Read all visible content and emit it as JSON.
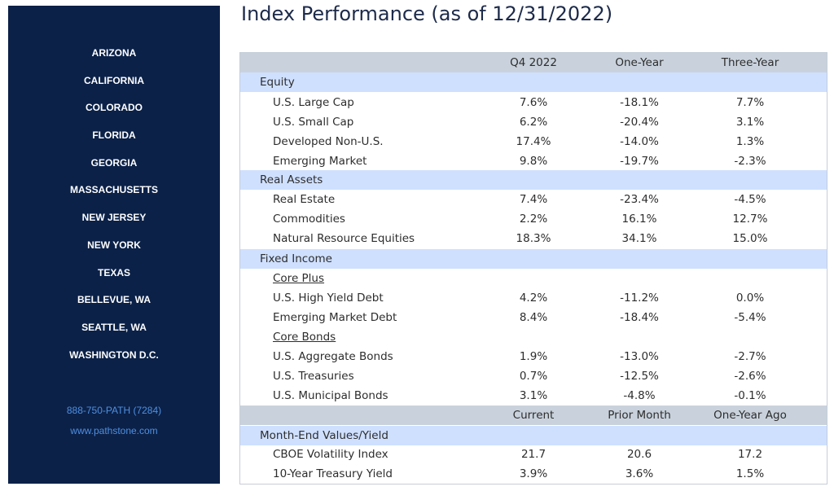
{
  "sidebar": {
    "locations": [
      "ARIZONA",
      "CALIFORNIA",
      "COLORADO",
      "FLORIDA",
      "GEORGIA",
      "MASSACHUSETTS",
      "NEW JERSEY",
      "NEW YORK",
      "TEXAS",
      "BELLEVUE, WA",
      "SEATTLE, WA",
      "WASHINGTON D.C."
    ],
    "phone": "888-750-PATH (7284)",
    "website": "www.pathstone.com"
  },
  "title": "Index Performance (as of 12/31/2022)",
  "table": {
    "headers": [
      "Q4 2022",
      "One-Year",
      "Three-Year"
    ],
    "equity": {
      "label": "Equity",
      "rows": [
        {
          "name": "U.S. Large Cap",
          "q4": "7.6%",
          "one": "-18.1%",
          "three": "7.7%"
        },
        {
          "name": "U.S. Small Cap",
          "q4": "6.2%",
          "one": "-20.4%",
          "three": "3.1%"
        },
        {
          "name": "Developed Non-U.S.",
          "q4": "17.4%",
          "one": "-14.0%",
          "three": "1.3%"
        },
        {
          "name": "Emerging Market",
          "q4": "9.8%",
          "one": "-19.7%",
          "three": "-2.3%"
        }
      ]
    },
    "real_assets": {
      "label": "Real Assets",
      "rows": [
        {
          "name": "Real Estate",
          "q4": "7.4%",
          "one": "-23.4%",
          "three": "-4.5%"
        },
        {
          "name": "Commodities",
          "q4": "2.2%",
          "one": "16.1%",
          "three": "12.7%"
        },
        {
          "name": "Natural Resource Equities",
          "q4": "18.3%",
          "one": "34.1%",
          "three": "15.0%"
        }
      ]
    },
    "fixed_income": {
      "label": "Fixed Income",
      "core_plus_label": "Core Plus",
      "core_plus_rows": [
        {
          "name": "U.S. High Yield Debt",
          "q4": "4.2%",
          "one": "-11.2%",
          "three": "0.0%"
        },
        {
          "name": "Emerging Market Debt",
          "q4": "8.4%",
          "one": "-18.4%",
          "three": "-5.4%"
        }
      ],
      "core_bonds_label": "Core Bonds",
      "core_bonds_rows": [
        {
          "name": "U.S. Aggregate Bonds",
          "q4": "1.9%",
          "one": "-13.0%",
          "three": "-2.7%"
        },
        {
          "name": "U.S. Treasuries",
          "q4": "0.7%",
          "one": "-12.5%",
          "three": "-2.6%"
        },
        {
          "name": "U.S. Municipal Bonds",
          "q4": "3.1%",
          "one": "-4.8%",
          "three": "-0.1%"
        }
      ]
    },
    "month_end_headers": [
      "Current",
      "Prior Month",
      "One-Year Ago"
    ],
    "month_end": {
      "label": "Month-End Values/Yield",
      "rows": [
        {
          "name": "CBOE Volatility Index",
          "cur": "21.7",
          "prior": "20.6",
          "ago": "17.2"
        },
        {
          "name": "10-Year Treasury Yield",
          "cur": "3.9%",
          "prior": "3.6%",
          "ago": "1.5%"
        }
      ]
    }
  }
}
